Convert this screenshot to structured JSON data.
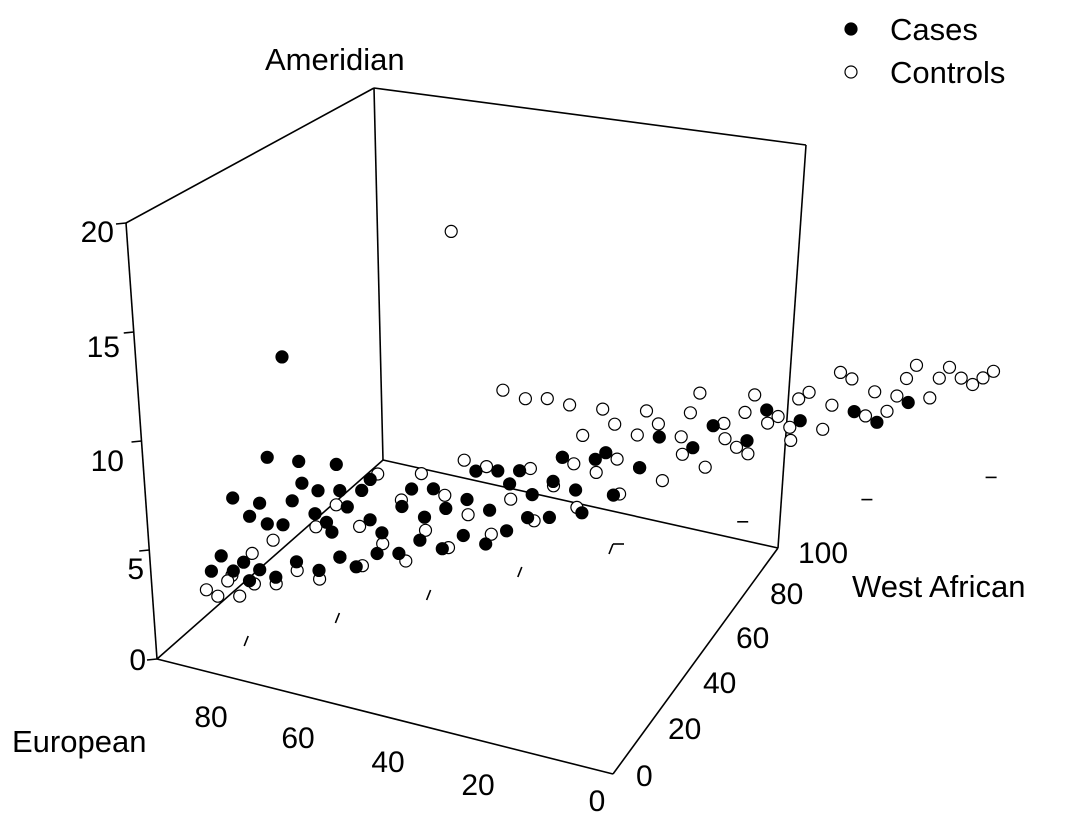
{
  "chart_data": {
    "type": "scatter3d",
    "axes": {
      "x": {
        "label": "European",
        "ticks": [
          "80",
          "60",
          "40",
          "20",
          "0"
        ],
        "range": [
          100,
          0
        ]
      },
      "y": {
        "label": "West African",
        "ticks": [
          "0",
          "20",
          "40",
          "60",
          "80",
          "100"
        ],
        "range": [
          0,
          100
        ]
      },
      "z": {
        "label": "Ameridian",
        "ticks": [
          "0",
          "5",
          "10",
          "15",
          "20"
        ],
        "range": [
          0,
          20
        ]
      }
    },
    "legend": {
      "placement": "top-right",
      "entries": [
        {
          "label": "Cases",
          "marker": "filled-circle"
        },
        {
          "label": "Controls",
          "marker": "open-circle"
        }
      ]
    },
    "series": [
      {
        "name": "Cases",
        "marker": "filled",
        "points": [
          [
            82,
            10,
            12.4
          ],
          [
            84,
            8,
            8.0
          ],
          [
            80,
            10,
            7.5
          ],
          [
            76,
            13,
            7.0
          ],
          [
            73,
            16,
            6.0
          ],
          [
            88,
            5,
            6.5
          ],
          [
            86,
            6,
            5.5
          ],
          [
            85,
            8,
            5.0
          ],
          [
            83,
            9,
            4.8
          ],
          [
            82,
            10,
            5.8
          ],
          [
            80,
            12,
            5.0
          ],
          [
            79,
            13,
            4.5
          ],
          [
            78,
            13,
            4.0
          ],
          [
            77,
            15,
            5.0
          ],
          [
            75,
            17,
            4.2
          ],
          [
            74,
            18,
            3.5
          ],
          [
            72,
            20,
            4.5
          ],
          [
            70,
            22,
            3.8
          ],
          [
            68,
            24,
            4.0
          ],
          [
            66,
            26,
            4.2
          ],
          [
            64,
            28,
            3.5
          ],
          [
            62,
            30,
            4.5
          ],
          [
            60,
            32,
            3.8
          ],
          [
            58,
            34,
            4.2
          ],
          [
            56,
            36,
            3.6
          ],
          [
            54,
            38,
            4.8
          ],
          [
            50,
            42,
            4.0
          ],
          [
            45,
            47,
            4.4
          ],
          [
            40,
            52,
            4.2
          ],
          [
            30,
            62,
            4.5
          ],
          [
            28,
            64,
            3.8
          ],
          [
            25,
            67,
            4.4
          ],
          [
            88,
            6,
            3.5
          ],
          [
            86,
            7,
            3.0
          ],
          [
            84,
            8,
            2.5
          ],
          [
            82,
            10,
            3.0
          ],
          [
            80,
            12,
            2.4
          ],
          [
            78,
            14,
            2.8
          ],
          [
            76,
            15,
            2.2
          ],
          [
            74,
            17,
            2.6
          ],
          [
            72,
            19,
            2.4
          ],
          [
            70,
            21,
            2.8
          ],
          [
            68,
            23,
            2.2
          ],
          [
            66,
            25,
            2.6
          ],
          [
            64,
            27,
            2.0
          ],
          [
            62,
            29,
            2.4
          ],
          [
            60,
            31,
            2.8
          ],
          [
            58,
            33,
            2.6
          ],
          [
            55,
            36,
            2.5
          ],
          [
            52,
            39,
            3.0
          ],
          [
            90,
            4,
            4.0
          ],
          [
            89,
            5,
            3.2
          ],
          [
            87,
            6,
            2.6
          ],
          [
            91,
            3,
            3.4
          ],
          [
            85,
            7,
            6.0
          ],
          [
            81,
            11,
            6.5
          ],
          [
            79,
            12,
            6.0
          ],
          [
            77,
            14,
            5.8
          ],
          [
            75,
            16,
            5.6
          ],
          [
            71,
            21,
            5.2
          ],
          [
            69,
            23,
            5.0
          ],
          [
            65,
            27,
            5.4
          ],
          [
            63,
            29,
            5.2
          ],
          [
            61,
            31,
            5.0
          ],
          [
            57,
            35,
            5.2
          ],
          [
            53,
            39,
            5.0
          ],
          [
            48,
            44,
            5.2
          ],
          [
            43,
            49,
            5.2
          ],
          [
            38,
            54,
            5.4
          ],
          [
            35,
            57,
            4.6
          ]
        ]
      },
      {
        "name": "Controls",
        "marker": "open",
        "points": [
          [
            68,
            28,
            16.5
          ],
          [
            62,
            30,
            8.8
          ],
          [
            60,
            32,
            8.2
          ],
          [
            58,
            34,
            8.0
          ],
          [
            56,
            36,
            7.5
          ],
          [
            40,
            52,
            5.5
          ],
          [
            45,
            47,
            6.0
          ],
          [
            48,
            44,
            5.8
          ],
          [
            50,
            42,
            5.5
          ],
          [
            52,
            40,
            6.2
          ],
          [
            55,
            37,
            6.0
          ],
          [
            57,
            35,
            5.2
          ],
          [
            35,
            57,
            5.6
          ],
          [
            32,
            60,
            5.0
          ],
          [
            28,
            64,
            5.2
          ],
          [
            25,
            67,
            5.5
          ],
          [
            22,
            70,
            5.2
          ],
          [
            20,
            72,
            5.0
          ],
          [
            18,
            74,
            4.8
          ],
          [
            30,
            62,
            6.0
          ],
          [
            38,
            54,
            4.8
          ],
          [
            42,
            50,
            4.5
          ],
          [
            46,
            46,
            4.2
          ],
          [
            50,
            42,
            4.0
          ],
          [
            54,
            38,
            4.2
          ],
          [
            58,
            34,
            4.0
          ],
          [
            62,
            30,
            3.8
          ],
          [
            66,
            26,
            3.5
          ],
          [
            70,
            22,
            3.2
          ],
          [
            74,
            18,
            3.0
          ],
          [
            78,
            14,
            2.8
          ],
          [
            82,
            10,
            2.6
          ],
          [
            86,
            6,
            2.4
          ],
          [
            90,
            3,
            2.2
          ],
          [
            88,
            5,
            2.0
          ],
          [
            84,
            8,
            2.2
          ],
          [
            80,
            12,
            2.0
          ],
          [
            76,
            16,
            2.2
          ],
          [
            72,
            20,
            2.0
          ],
          [
            68,
            24,
            2.2
          ],
          [
            64,
            28,
            2.4
          ],
          [
            60,
            32,
            2.6
          ],
          [
            56,
            36,
            2.8
          ],
          [
            52,
            40,
            3.0
          ],
          [
            48,
            44,
            3.2
          ],
          [
            44,
            48,
            3.4
          ],
          [
            40,
            52,
            3.6
          ],
          [
            36,
            56,
            3.8
          ],
          [
            33,
            59,
            4.0
          ],
          [
            27,
            65,
            4.2
          ],
          [
            23,
            69,
            4.4
          ],
          [
            19,
            73,
            4.6
          ],
          [
            17,
            75,
            5.0
          ],
          [
            21,
            71,
            5.6
          ],
          [
            24,
            68,
            6.0
          ],
          [
            70,
            22,
            5.8
          ],
          [
            74,
            18,
            6.2
          ],
          [
            66,
            26,
            6.0
          ],
          [
            64,
            28,
            5.5
          ],
          [
            60,
            32,
            5.0
          ],
          [
            56,
            36,
            4.8
          ],
          [
            52,
            40,
            4.6
          ],
          [
            46,
            46,
            5.0
          ],
          [
            42,
            50,
            5.2
          ],
          [
            36,
            56,
            4.4
          ],
          [
            78,
            14,
            5.2
          ],
          [
            80,
            12,
            4.4
          ],
          [
            76,
            16,
            4.0
          ],
          [
            72,
            20,
            4.8
          ],
          [
            68,
            24,
            4.6
          ],
          [
            86,
            6,
            3.8
          ],
          [
            84,
            8,
            4.2
          ],
          [
            88,
            4,
            3.0
          ],
          [
            91,
            2,
            2.6
          ],
          [
            89,
            4,
            2.8
          ],
          [
            53,
            39,
            7.0
          ],
          [
            49,
            43,
            6.5
          ],
          [
            44,
            48,
            6.8
          ],
          [
            39,
            53,
            6.2
          ],
          [
            34,
            58,
            5.8
          ],
          [
            31,
            61,
            6.4
          ],
          [
            26,
            66,
            4.8
          ],
          [
            29,
            63,
            4.2
          ],
          [
            37,
            55,
            5.0
          ],
          [
            41,
            51,
            4.0
          ]
        ]
      }
    ]
  }
}
